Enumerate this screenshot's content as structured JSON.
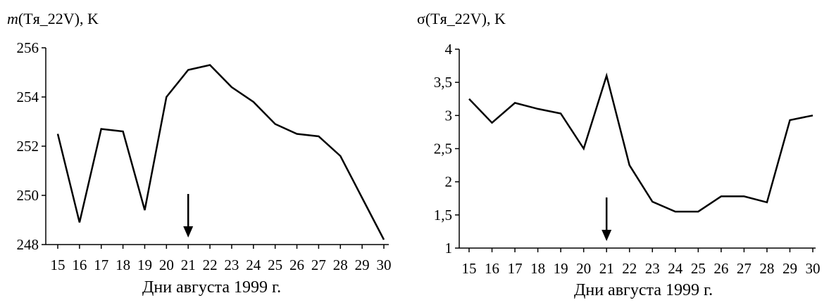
{
  "chart_data": [
    {
      "type": "line",
      "title_prefix": "m",
      "title_rest": "(Tя_22V), K",
      "xlabel": "Дни августа 1999 г.",
      "ylabel": "",
      "x": [
        "15",
        "16",
        "17",
        "18",
        "19",
        "20",
        "21",
        "22",
        "23",
        "24",
        "25",
        "26",
        "27",
        "28",
        "29",
        "30"
      ],
      "series": [
        {
          "values": [
            252.5,
            248.9,
            252.7,
            252.6,
            249.4,
            254.0,
            255.1,
            255.3,
            254.4,
            253.8,
            252.9,
            252.5,
            252.4,
            251.6,
            249.9,
            248.2
          ]
        }
      ],
      "ylim": [
        248,
        256
      ],
      "yticks": [
        "248",
        "250",
        "252",
        "254",
        "256"
      ],
      "ytick_values": [
        248,
        250,
        252,
        254,
        256
      ],
      "arrow_at": "21",
      "grid": false
    },
    {
      "type": "line",
      "title_prefix": "σ",
      "title_rest": "(Tя_22V), K",
      "xlabel": "Дни августа 1999 г.",
      "ylabel": "",
      "x": [
        "15",
        "16",
        "17",
        "18",
        "19",
        "20",
        "21",
        "22",
        "23",
        "24",
        "25",
        "26",
        "27",
        "28",
        "29",
        "30"
      ],
      "series": [
        {
          "values": [
            3.25,
            2.89,
            3.19,
            3.1,
            3.03,
            2.5,
            3.6,
            2.25,
            1.7,
            1.55,
            1.55,
            1.78,
            1.78,
            1.69,
            2.93,
            3.0
          ]
        }
      ],
      "ylim": [
        1,
        4
      ],
      "yticks": [
        "1",
        "1,5",
        "2",
        "2,5",
        "3",
        "3,5",
        "4"
      ],
      "ytick_values": [
        1,
        1.5,
        2,
        2.5,
        3,
        3.5,
        4
      ],
      "arrow_at": "21",
      "grid": false
    }
  ]
}
